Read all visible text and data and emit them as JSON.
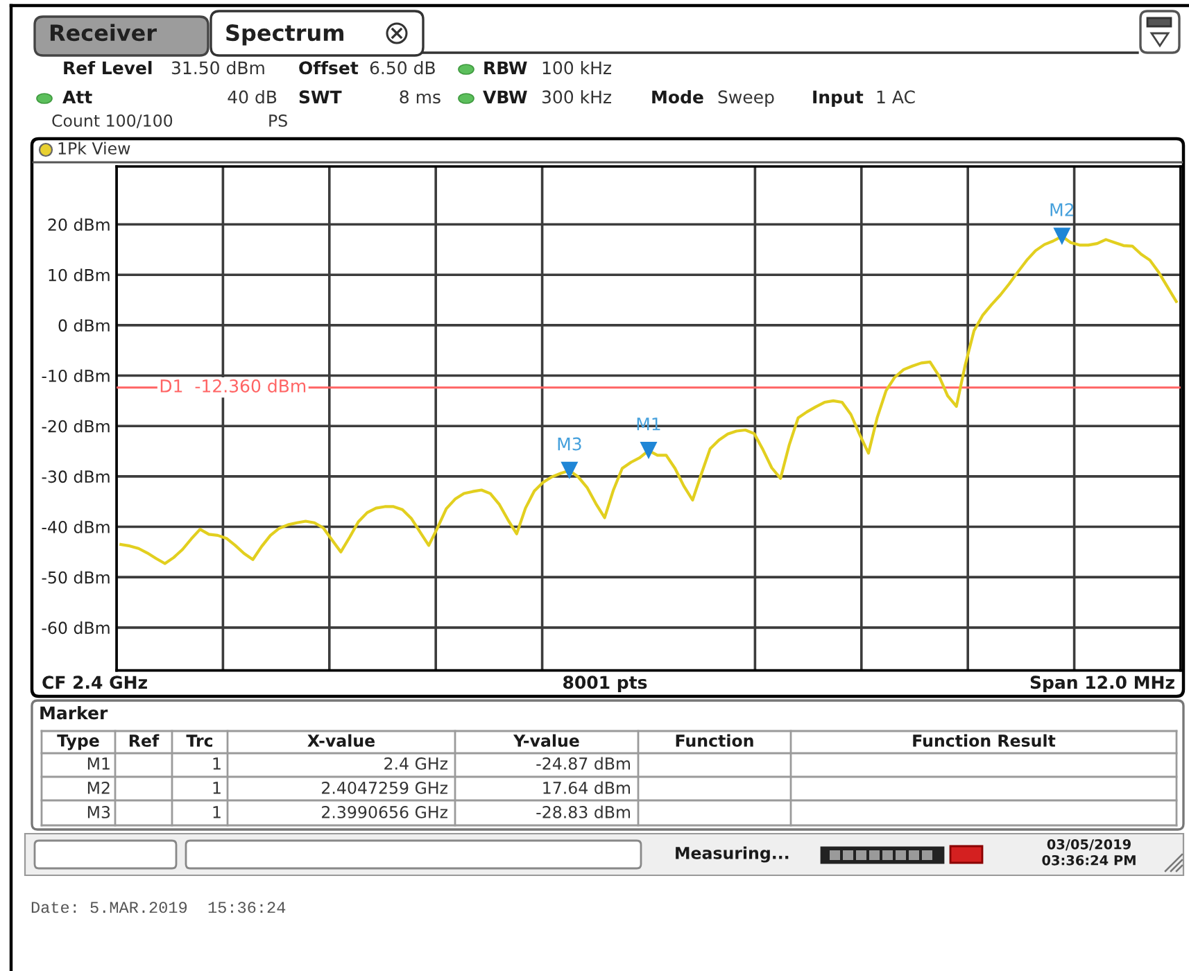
{
  "chart_data": {
    "type": "line",
    "categories": [
      null,
      null,
      null,
      null,
      null,
      null,
      null,
      null,
      null,
      null,
      null,
      null,
      null,
      null,
      null,
      null,
      null,
      null,
      null,
      null,
      null,
      null,
      null,
      null,
      null,
      null,
      null,
      null,
      null,
      null,
      null,
      null,
      null,
      null,
      null,
      null,
      null,
      null,
      null,
      null,
      null,
      null,
      null,
      null,
      null,
      null,
      null,
      null,
      null,
      null,
      null,
      null,
      null,
      null,
      null,
      null,
      null,
      null,
      null,
      null,
      null,
      null,
      null,
      null,
      null,
      null,
      null,
      null,
      null,
      null,
      null,
      null,
      null,
      null,
      null,
      null,
      null,
      null,
      null,
      null,
      null,
      null,
      null,
      null,
      null,
      null,
      null,
      null,
      null,
      null,
      null,
      null,
      null,
      null,
      null,
      null,
      null,
      null,
      null,
      null,
      null,
      null,
      null,
      null,
      null,
      null,
      null,
      null,
      null,
      null,
      null,
      null,
      null,
      null,
      null,
      null,
      null,
      null,
      null,
      null,
      null
    ],
    "series": [
      {
        "color": "#e2cf1f",
        "values": [
          -43.5,
          -43.8,
          -44.3,
          -45.2,
          -46.3,
          -47.3,
          -46.1,
          -44.5,
          -42.4,
          -40.5,
          -41.5,
          -41.7,
          -42.3,
          -43.7,
          -45.3,
          -46.5,
          -43.9,
          -41.7,
          -40.3,
          -39.6,
          -39.2,
          -38.9,
          -39.2,
          -40.2,
          -42.6,
          -45.0,
          -42.1,
          -39.0,
          -37.2,
          -36.3,
          -36.0,
          -36.0,
          -36.6,
          -38.3,
          -41.0,
          -43.7,
          -40.2,
          -36.4,
          -34.5,
          -33.4,
          -33.0,
          -32.7,
          -33.4,
          -35.5,
          -38.6,
          -41.4,
          -36.3,
          -32.9,
          -31.2,
          -30.1,
          -29.4,
          -28.83,
          -30.1,
          -32.2,
          -35.4,
          -38.2,
          -32.7,
          -28.4,
          -27.2,
          -26.3,
          -24.87,
          -25.8,
          -25.8,
          -28.4,
          -31.9,
          -34.7,
          -29.5,
          -24.5,
          -22.8,
          -21.6,
          -21.0,
          -20.8,
          -21.5,
          -24.7,
          -28.3,
          -30.4,
          -23.7,
          -18.4,
          -17.2,
          -16.2,
          -15.3,
          -15.0,
          -15.3,
          -17.7,
          -21.7,
          -25.4,
          -18.3,
          -13.0,
          -10.3,
          -8.8,
          -8.1,
          -7.5,
          -7.3,
          -10.0,
          -14.0,
          -16.1,
          -7.9,
          -1.1,
          2.0,
          4.1,
          6.0,
          8.2,
          10.6,
          12.9,
          14.8,
          16.0,
          16.7,
          17.64,
          16.4,
          15.9,
          15.9,
          16.2,
          17.0,
          16.4,
          15.8,
          15.7,
          14.1,
          12.9,
          10.5,
          7.6,
          4.7
        ]
      },
      {
        "type": "scatter",
        "color": "#1f86d6",
        "marker": "triangle",
        "values": [
          null,
          null,
          null,
          null,
          null,
          null,
          null,
          null,
          null,
          null,
          null,
          null,
          null,
          null,
          null,
          null,
          null,
          null,
          null,
          null,
          null,
          null,
          null,
          null,
          null,
          null,
          null,
          null,
          null,
          null,
          null,
          null,
          null,
          null,
          null,
          null,
          null,
          null,
          null,
          null,
          null,
          null,
          null,
          null,
          null,
          null,
          null,
          null,
          null,
          null,
          null,
          -28.83,
          null,
          null,
          null,
          null,
          null,
          null,
          null,
          null,
          -24.87,
          null,
          null,
          null,
          null,
          null,
          null,
          null,
          null,
          null,
          null,
          null,
          null,
          null,
          null,
          null,
          null,
          null,
          null,
          null,
          null,
          null,
          null,
          null,
          null,
          null,
          null,
          null,
          null,
          null,
          null,
          null,
          null,
          null,
          null,
          null,
          null,
          null,
          null,
          null,
          null,
          null,
          null,
          null,
          null,
          null,
          null,
          17.64,
          null,
          null,
          null,
          null,
          null,
          null,
          null,
          null,
          null,
          null,
          null,
          null,
          null
        ],
        "value_labels": [
          null,
          null,
          null,
          null,
          null,
          null,
          null,
          null,
          null,
          null,
          null,
          null,
          null,
          null,
          null,
          null,
          null,
          null,
          null,
          null,
          null,
          null,
          null,
          null,
          null,
          null,
          null,
          null,
          null,
          null,
          null,
          null,
          null,
          null,
          null,
          null,
          null,
          null,
          null,
          null,
          null,
          null,
          null,
          null,
          null,
          null,
          null,
          null,
          null,
          null,
          null,
          "M3",
          null,
          null,
          null,
          null,
          null,
          null,
          null,
          null,
          "M1",
          null,
          null,
          null,
          null,
          null,
          null,
          null,
          null,
          null,
          null,
          null,
          null,
          null,
          null,
          null,
          null,
          null,
          null,
          null,
          null,
          null,
          null,
          null,
          null,
          null,
          null,
          null,
          null,
          null,
          null,
          null,
          null,
          null,
          null,
          null,
          null,
          null,
          null,
          null,
          null,
          null,
          null,
          null,
          null,
          null,
          null,
          "M2",
          null,
          null,
          null,
          null,
          null,
          null,
          null,
          null,
          null,
          null,
          null,
          null,
          null
        ]
      }
    ],
    "ylim": [
      -68.5,
      31.5
    ],
    "yticks": [
      {
        "value": 20,
        "label": "20 dBm"
      },
      {
        "value": 10,
        "label": "10 dBm"
      },
      {
        "value": 0,
        "label": "0 dBm"
      },
      {
        "value": -10,
        "label": "-10 dBm"
      },
      {
        "value": -20,
        "label": "-20 dBm"
      },
      {
        "value": -30,
        "label": "-30 dBm"
      },
      {
        "value": -40,
        "label": "-40 dBm"
      },
      {
        "value": -50,
        "label": "-50 dBm"
      },
      {
        "value": -60,
        "label": "-60 dBm"
      }
    ],
    "tick_labels": "y",
    "grid": true,
    "ref_lines": [
      {
        "axis": "y",
        "value": -12.36,
        "label": "D1  -12.360 dBm",
        "color": "#ff6464"
      }
    ],
    "annotations": [
      "Receiver",
      "Spectrum",
      "Ref Level",
      "31.50 dBm",
      "Offset",
      "6.50 dB",
      "RBW",
      "100 kHz",
      "Att",
      "40 dB",
      "SWT",
      "8 ms",
      "VBW",
      "300 kHz",
      "Mode",
      "Sweep",
      "Input",
      "1 AC",
      "Count 100/100",
      "PS",
      "1Pk View",
      "CF 2.4 GHz",
      "8001 pts",
      "Span 12.0 MHz",
      "Marker",
      "Type",
      "Ref",
      "Trc",
      "X-value",
      "Y-value",
      "Function",
      "Function Result",
      "M1",
      "1",
      "2.4 GHz",
      "-24.87 dBm",
      "M2",
      "1",
      "2.4047259 GHz",
      "17.64 dBm",
      "M3",
      "1",
      "2.3990656 GHz",
      "-28.83 dBm",
      "Measuring...",
      "03/05/2019",
      "03:36:24 PM",
      "Date: 5.MAR.2019  15:36:24"
    ]
  }
}
